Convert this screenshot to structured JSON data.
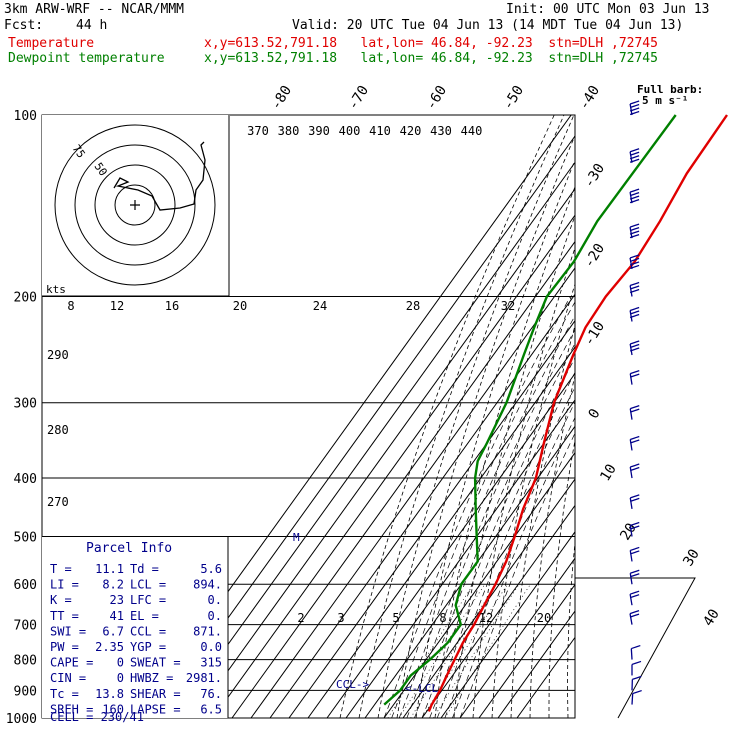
{
  "header": {
    "model": "3km ARW-WRF -- NCAR/MMM",
    "init": "Init: 00 UTC Mon 03 Jun 13",
    "fcst_label": "Fcst:",
    "fcst_value": "44 h",
    "valid": "Valid: 20 UTC Tue 04 Jun 13 (14 MDT Tue 04 Jun 13)",
    "temp_label": "Temperature",
    "dew_label": "Dewpoint temperature",
    "location": "x,y=613.52,791.18   lat,lon= 46.84, -92.23  stn=DLH ,72745",
    "colors": {
      "temperature": "#e00000",
      "dewpoint": "#008000",
      "panel_text": "#00008b"
    }
  },
  "barb_legend": {
    "title": "Full barb:",
    "value": "5 m s⁻¹"
  },
  "parcel_info": {
    "title": "Parcel Info",
    "rows": [
      [
        "T  =",
        "11.1",
        "Td =",
        "5.6"
      ],
      [
        "LI =",
        "8.2",
        "LCL =",
        "894."
      ],
      [
        "K  =",
        "23",
        "LFC =",
        "0."
      ],
      [
        "TT =",
        "41",
        "EL  =",
        "0."
      ],
      [
        "SWI =",
        "6.7",
        "CCL =",
        "871."
      ],
      [
        "PW =",
        "2.35",
        "YGP =",
        "0.0"
      ],
      [
        "CAPE =",
        "0",
        "SWEAT =",
        "315"
      ],
      [
        "CIN =",
        "0",
        "HWBZ =",
        "2981."
      ],
      [
        "Tc =",
        "13.8",
        "SHEAR =",
        "76."
      ],
      [
        "SREH =",
        "160",
        "LAPSE =",
        "6.5"
      ]
    ],
    "cell": "CELL = 230/41"
  },
  "annotations": {
    "ccl": "CCL->",
    "lcl": "<-LCL",
    "m": "M"
  },
  "hodograph": {
    "unit": "kts",
    "ring_labels": [
      "75",
      "50"
    ],
    "speed_ticks": [
      "8",
      "12",
      "16",
      "20",
      "24",
      "28",
      "32"
    ]
  },
  "chart_data": {
    "type": "line",
    "title": "",
    "ylabel": "",
    "pressure_levels": [
      100,
      200,
      300,
      400,
      500,
      600,
      700,
      800,
      900,
      1000
    ],
    "series": [
      {
        "name": "Temperature",
        "pressure": [
          100,
          125,
          150,
          175,
          200,
          225,
          250,
          300,
          350,
          400,
          450,
          500,
          550,
          600,
          650,
          700,
          750,
          800,
          850,
          900,
          950,
          975
        ],
        "temp_c": [
          -58,
          -57,
          -53,
          -51,
          -53,
          -52,
          -48,
          -40,
          -30,
          -21,
          -16,
          -10,
          -5,
          -2,
          0,
          2,
          3,
          5,
          7,
          9,
          10,
          11.1
        ]
      },
      {
        "name": "Dewpoint temperature",
        "pressure": [
          100,
          150,
          175,
          200,
          225,
          250,
          300,
          350,
          375,
          400,
          450,
          500,
          550,
          600,
          650,
          700,
          750,
          800,
          850,
          900,
          950
        ],
        "dewpoint_c": [
          -85,
          -86,
          -83,
          -84,
          -79,
          -74,
          -65,
          -60,
          -58,
          -53,
          -41,
          -30,
          -20,
          -20,
          -15,
          -5,
          -5,
          -8,
          -12,
          -12,
          -15
        ]
      }
    ],
    "isotherm_labels": [
      "-80",
      "-70",
      "-60",
      "-50",
      "-40",
      "-30",
      "-20",
      "-10",
      "0",
      "10",
      "20",
      "30",
      "40"
    ],
    "theta_labels": [
      "370",
      "380",
      "390",
      "400",
      "410",
      "420",
      "430",
      "440"
    ],
    "dry_adiabat_labels": [
      "290",
      "280",
      "270"
    ],
    "mixing_ratio_labels": [
      "2",
      "3",
      "5",
      "8",
      "12",
      "20"
    ],
    "wind_barbs": [
      {
        "p": 100,
        "dir": 250,
        "spd": 20
      },
      {
        "p": 120,
        "dir": 250,
        "spd": 22
      },
      {
        "p": 140,
        "dir": 255,
        "spd": 22
      },
      {
        "p": 160,
        "dir": 255,
        "spd": 20
      },
      {
        "p": 180,
        "dir": 255,
        "spd": 18
      },
      {
        "p": 200,
        "dir": 250,
        "spd": 15
      },
      {
        "p": 220,
        "dir": 250,
        "spd": 15
      },
      {
        "p": 250,
        "dir": 245,
        "spd": 14
      },
      {
        "p": 280,
        "dir": 240,
        "spd": 12
      },
      {
        "p": 320,
        "dir": 240,
        "spd": 12
      },
      {
        "p": 360,
        "dir": 240,
        "spd": 12
      },
      {
        "p": 400,
        "dir": 240,
        "spd": 12
      },
      {
        "p": 450,
        "dir": 240,
        "spd": 12
      },
      {
        "p": 500,
        "dir": 240,
        "spd": 12
      },
      {
        "p": 550,
        "dir": 240,
        "spd": 12
      },
      {
        "p": 600,
        "dir": 240,
        "spd": 12
      },
      {
        "p": 650,
        "dir": 250,
        "spd": 10
      },
      {
        "p": 700,
        "dir": 260,
        "spd": 8
      },
      {
        "p": 800,
        "dir": 200,
        "spd": 6
      },
      {
        "p": 850,
        "dir": 180,
        "spd": 5
      },
      {
        "p": 900,
        "dir": 170,
        "spd": 5
      },
      {
        "p": 950,
        "dir": 160,
        "spd": 5
      }
    ]
  }
}
